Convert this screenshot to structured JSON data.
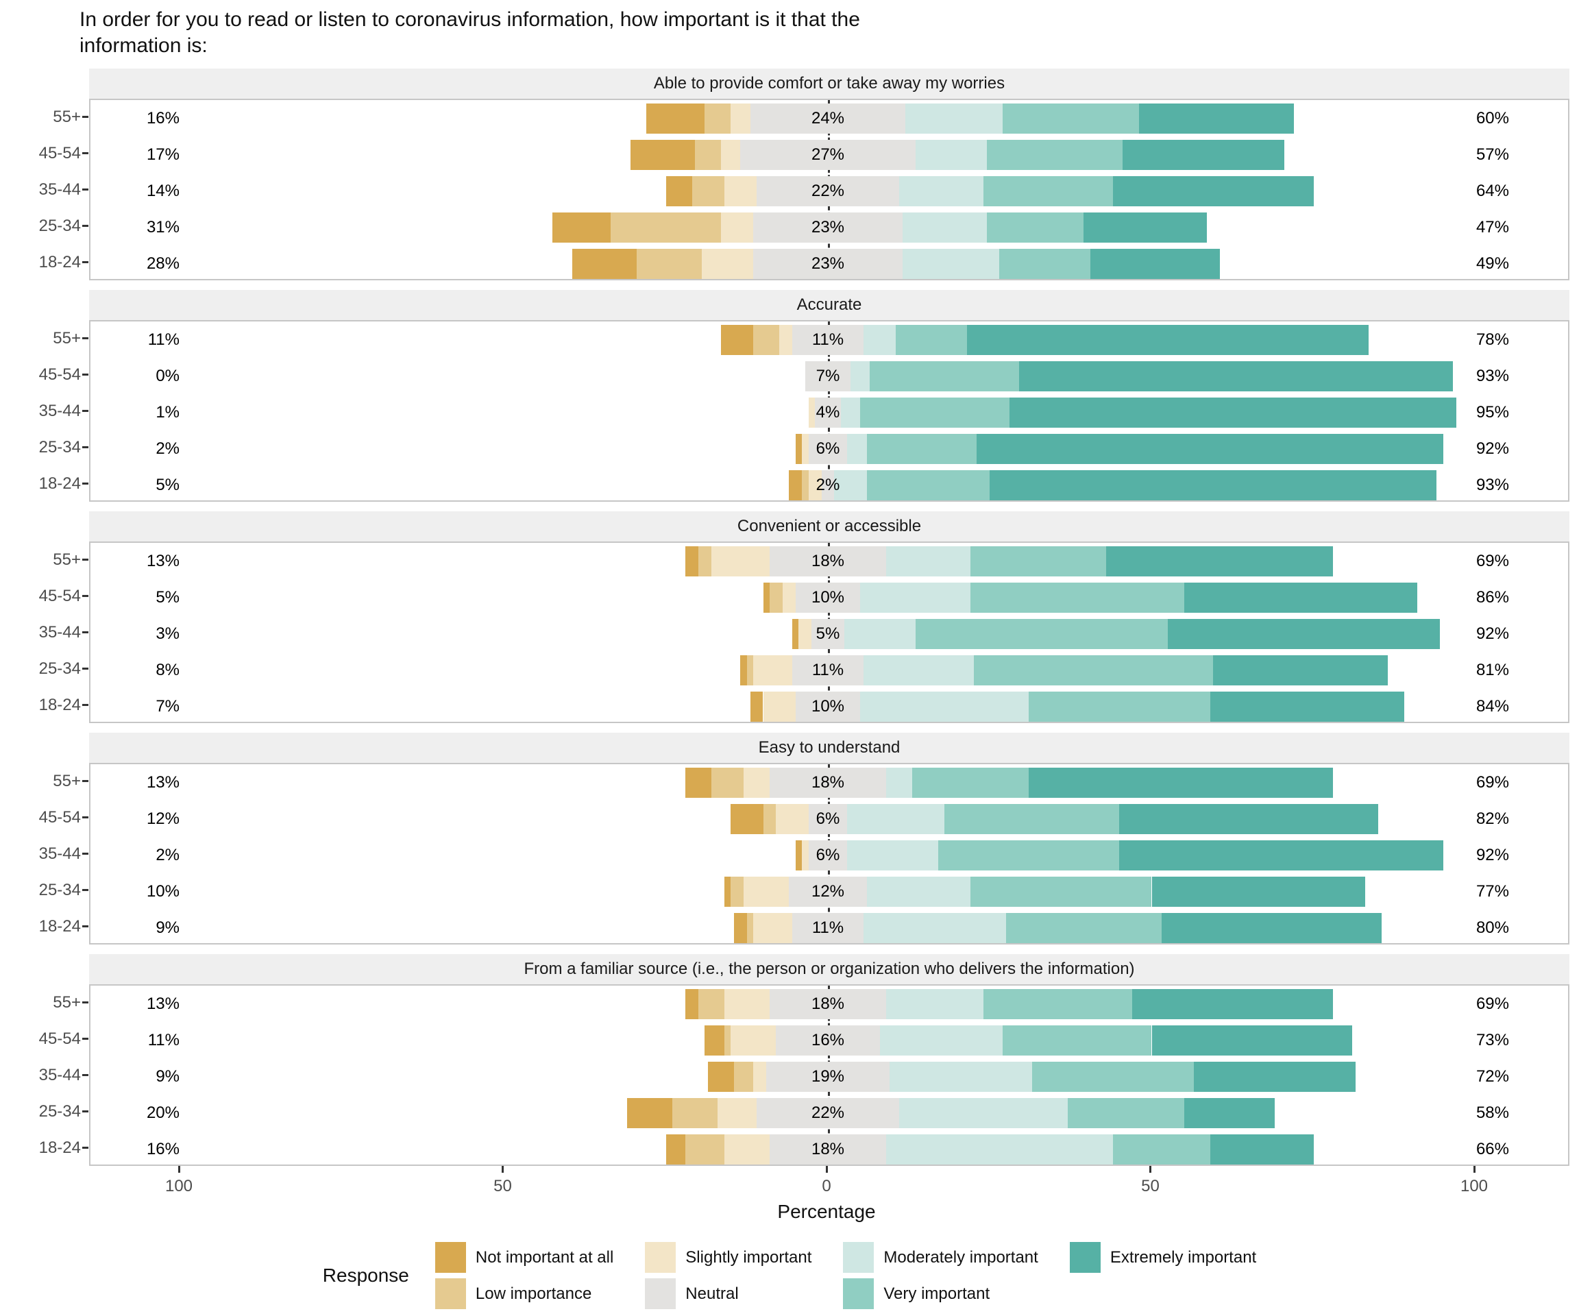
{
  "title": "In order for you to read or listen to coronavirus information, how important is it that the\ninformation is:",
  "axis": {
    "label": "Percentage",
    "ticks": [
      "100",
      "50",
      "0",
      "50",
      "100"
    ],
    "tick_values": [
      -100,
      -50,
      0,
      50,
      100
    ]
  },
  "legend": {
    "title": "Response",
    "column_order": [
      [
        0,
        1
      ],
      [
        2,
        3
      ],
      [
        4,
        5
      ],
      [
        6
      ]
    ]
  },
  "colors": {
    "panel_header_bg": "#efefef",
    "panel_border": "#c6c6c6",
    "axis_text": "#4d4d4d",
    "zero_line": "#333333"
  },
  "chart_data": {
    "type": "diverging_stacked_bar",
    "xlabel": "Percentage",
    "xlim": [
      -115,
      115
    ],
    "group_axis": [
      "55+",
      "45-54",
      "35-44",
      "25-34",
      "18-24"
    ],
    "response_levels": [
      {
        "name": "Not important at all",
        "color": "#d8a950"
      },
      {
        "name": "Low importance",
        "color": "#e5ca90"
      },
      {
        "name": "Slightly important",
        "color": "#f3e5c7"
      },
      {
        "name": "Neutral",
        "color": "#e3e2e0"
      },
      {
        "name": "Moderately important",
        "color": "#cfe7e3"
      },
      {
        "name": "Very important",
        "color": "#90cec2"
      },
      {
        "name": "Extremely important",
        "color": "#56b1a5"
      }
    ],
    "panels": [
      {
        "title": "Able to provide comfort or take away my worries",
        "rows": [
          {
            "group": "55+",
            "labels": {
              "left": "16%",
              "neutral": "24%",
              "right": "60%"
            },
            "values": [
              9,
              4,
              3,
              24,
              15,
              21,
              24
            ]
          },
          {
            "group": "45-54",
            "labels": {
              "left": "17%",
              "neutral": "27%",
              "right": "57%"
            },
            "values": [
              10,
              4,
              3,
              27,
              11,
              21,
              25
            ]
          },
          {
            "group": "35-44",
            "labels": {
              "left": "14%",
              "neutral": "22%",
              "right": "64%"
            },
            "values": [
              4,
              5,
              5,
              22,
              13,
              20,
              31
            ]
          },
          {
            "group": "25-34",
            "labels": {
              "left": "31%",
              "neutral": "23%",
              "right": "47%"
            },
            "values": [
              9,
              17,
              5,
              23,
              13,
              15,
              19
            ]
          },
          {
            "group": "18-24",
            "labels": {
              "left": "28%",
              "neutral": "23%",
              "right": "49%"
            },
            "values": [
              10,
              10,
              8,
              23,
              15,
              14,
              20
            ]
          }
        ]
      },
      {
        "title": "Accurate",
        "rows": [
          {
            "group": "55+",
            "labels": {
              "left": "11%",
              "neutral": "11%",
              "right": "78%"
            },
            "values": [
              5,
              4,
              2,
              11,
              5,
              11,
              62
            ]
          },
          {
            "group": "45-54",
            "labels": {
              "left": "0%",
              "neutral": "7%",
              "right": "93%"
            },
            "values": [
              0,
              0,
              0,
              7,
              3,
              23,
              67
            ]
          },
          {
            "group": "35-44",
            "labels": {
              "left": "1%",
              "neutral": "4%",
              "right": "95%"
            },
            "values": [
              0,
              0,
              1,
              4,
              3,
              23,
              69
            ]
          },
          {
            "group": "25-34",
            "labels": {
              "left": "2%",
              "neutral": "6%",
              "right": "92%"
            },
            "values": [
              1,
              0,
              1,
              6,
              3,
              17,
              72
            ]
          },
          {
            "group": "18-24",
            "labels": {
              "left": "5%",
              "neutral": "2%",
              "right": "93%"
            },
            "values": [
              2,
              1,
              2,
              2,
              5,
              19,
              69
            ]
          }
        ]
      },
      {
        "title": "Convenient or accessible",
        "rows": [
          {
            "group": "55+",
            "labels": {
              "left": "13%",
              "neutral": "18%",
              "right": "69%"
            },
            "values": [
              2,
              2,
              9,
              18,
              13,
              21,
              35
            ]
          },
          {
            "group": "45-54",
            "labels": {
              "left": "5%",
              "neutral": "10%",
              "right": "86%"
            },
            "values": [
              1,
              2,
              2,
              10,
              17,
              33,
              36
            ]
          },
          {
            "group": "35-44",
            "labels": {
              "left": "3%",
              "neutral": "5%",
              "right": "92%"
            },
            "values": [
              1,
              0,
              2,
              5,
              11,
              39,
              42
            ]
          },
          {
            "group": "25-34",
            "labels": {
              "left": "8%",
              "neutral": "11%",
              "right": "81%"
            },
            "values": [
              1,
              1,
              6,
              11,
              17,
              37,
              27
            ]
          },
          {
            "group": "18-24",
            "labels": {
              "left": "7%",
              "neutral": "10%",
              "right": "84%"
            },
            "values": [
              2,
              0,
              5,
              10,
              26,
              28,
              30
            ]
          }
        ]
      },
      {
        "title": "Easy to understand",
        "rows": [
          {
            "group": "55+",
            "labels": {
              "left": "13%",
              "neutral": "18%",
              "right": "69%"
            },
            "values": [
              4,
              5,
              4,
              18,
              4,
              18,
              47
            ]
          },
          {
            "group": "45-54",
            "labels": {
              "left": "12%",
              "neutral": "6%",
              "right": "82%"
            },
            "values": [
              5,
              2,
              5,
              6,
              15,
              27,
              40
            ]
          },
          {
            "group": "35-44",
            "labels": {
              "left": "2%",
              "neutral": "6%",
              "right": "92%"
            },
            "values": [
              1,
              0,
              1,
              6,
              14,
              28,
              50
            ]
          },
          {
            "group": "25-34",
            "labels": {
              "left": "10%",
              "neutral": "12%",
              "right": "77%"
            },
            "values": [
              1,
              2,
              7,
              12,
              16,
              28,
              33
            ]
          },
          {
            "group": "18-24",
            "labels": {
              "left": "9%",
              "neutral": "11%",
              "right": "80%"
            },
            "values": [
              2,
              1,
              6,
              11,
              22,
              24,
              34
            ]
          }
        ]
      },
      {
        "title": "From a familiar source (i.e., the person or organization who delivers the information)",
        "rows": [
          {
            "group": "55+",
            "labels": {
              "left": "13%",
              "neutral": "18%",
              "right": "69%"
            },
            "values": [
              2,
              4,
              7,
              18,
              15,
              23,
              31
            ]
          },
          {
            "group": "45-54",
            "labels": {
              "left": "11%",
              "neutral": "16%",
              "right": "73%"
            },
            "values": [
              3,
              1,
              7,
              16,
              19,
              23,
              31
            ]
          },
          {
            "group": "35-44",
            "labels": {
              "left": "9%",
              "neutral": "19%",
              "right": "72%"
            },
            "values": [
              4,
              3,
              2,
              19,
              22,
              25,
              25
            ]
          },
          {
            "group": "25-34",
            "labels": {
              "left": "20%",
              "neutral": "22%",
              "right": "58%"
            },
            "values": [
              7,
              7,
              6,
              22,
              26,
              18,
              14
            ]
          },
          {
            "group": "18-24",
            "labels": {
              "left": "16%",
              "neutral": "18%",
              "right": "66%"
            },
            "values": [
              3,
              6,
              7,
              18,
              35,
              15,
              16
            ]
          }
        ]
      }
    ]
  }
}
